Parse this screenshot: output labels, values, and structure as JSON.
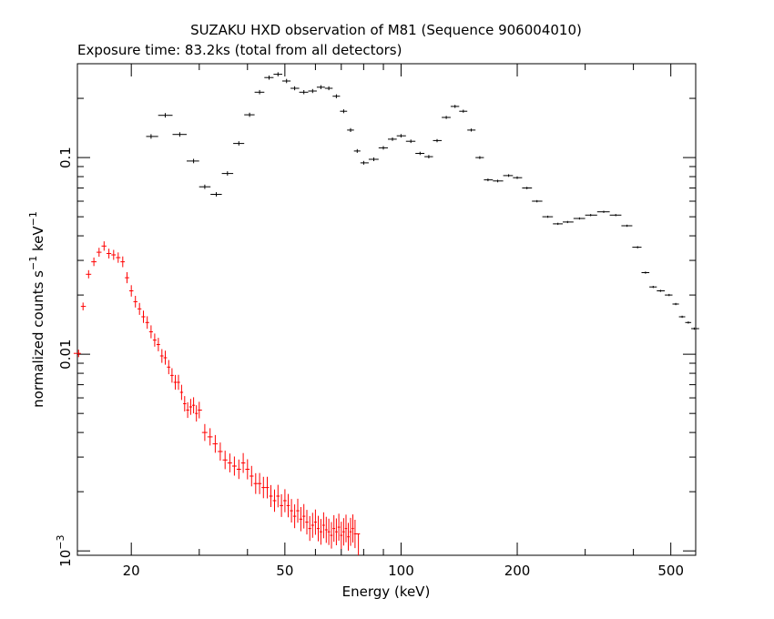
{
  "chart_data": {
    "type": "scatter",
    "title": "SUZAKU HXD observation of M81 (Sequence 906004010)",
    "subtitle": "Exposure time: 83.2ks (total from all detectors)",
    "xlabel": "Energy (keV)",
    "ylabel": "normalized counts s",
    "ylabel_exp1": "−1",
    "ylabel_mid": " keV",
    "ylabel_exp2": "−1",
    "x_scale": "log",
    "y_scale": "log",
    "xlim": [
      14.5,
      580
    ],
    "ylim": [
      0.00095,
      0.3
    ],
    "x_tick_labels": [
      {
        "value": 20,
        "label": "20"
      },
      {
        "value": 50,
        "label": "50"
      },
      {
        "value": 100,
        "label": "100"
      },
      {
        "value": 200,
        "label": "200"
      },
      {
        "value": 500,
        "label": "500"
      }
    ],
    "y_tick_labels": [
      {
        "value": 0.1,
        "label": "0.1"
      },
      {
        "value": 0.01,
        "label": "0.01"
      },
      {
        "value": 0.001,
        "label": "10",
        "exp": "−3"
      }
    ],
    "grid": false,
    "series": [
      {
        "color": "#000000",
        "points": [
          [
            22.5,
            0.128
          ],
          [
            24.5,
            0.164
          ],
          [
            26.7,
            0.131
          ],
          [
            29.0,
            0.096
          ],
          [
            31.0,
            0.071
          ],
          [
            33.2,
            0.065
          ],
          [
            35.5,
            0.083
          ],
          [
            38.0,
            0.118
          ],
          [
            40.5,
            0.165
          ],
          [
            43.0,
            0.215
          ],
          [
            45.5,
            0.255
          ],
          [
            48.0,
            0.265
          ],
          [
            50.5,
            0.245
          ],
          [
            53.0,
            0.225
          ],
          [
            56.0,
            0.215
          ],
          [
            59.0,
            0.218
          ],
          [
            62.0,
            0.228
          ],
          [
            65.0,
            0.225
          ],
          [
            68.0,
            0.205
          ],
          [
            71.0,
            0.172
          ],
          [
            74.0,
            0.138
          ],
          [
            77.0,
            0.108
          ],
          [
            80.0,
            0.094
          ],
          [
            85.0,
            0.098
          ],
          [
            90.0,
            0.112
          ],
          [
            95.0,
            0.124
          ],
          [
            100.0,
            0.129
          ],
          [
            106.0,
            0.121
          ],
          [
            112.0,
            0.105
          ],
          [
            118.0,
            0.101
          ],
          [
            124.0,
            0.122
          ],
          [
            131.0,
            0.16
          ],
          [
            138.0,
            0.182
          ],
          [
            145.0,
            0.172
          ],
          [
            152.0,
            0.138
          ],
          [
            160.0,
            0.1
          ],
          [
            168.0,
            0.077
          ],
          [
            178.0,
            0.076
          ],
          [
            190.0,
            0.081
          ],
          [
            200.0,
            0.079
          ],
          [
            212.0,
            0.07
          ],
          [
            225.0,
            0.06
          ],
          [
            240.0,
            0.05
          ],
          [
            255.0,
            0.046
          ],
          [
            270.0,
            0.047
          ],
          [
            290.0,
            0.049
          ],
          [
            310.0,
            0.051
          ],
          [
            335.0,
            0.053
          ],
          [
            360.0,
            0.051
          ],
          [
            385.0,
            0.045
          ],
          [
            410.0,
            0.035
          ],
          [
            430.0,
            0.026
          ],
          [
            450.0,
            0.022
          ],
          [
            470.0,
            0.021
          ],
          [
            495.0,
            0.02
          ],
          [
            515.0,
            0.018
          ],
          [
            535.0,
            0.0155
          ],
          [
            555.0,
            0.0145
          ],
          [
            575.0,
            0.0135
          ]
        ]
      },
      {
        "color": "#ff0000",
        "points": [
          [
            14.6,
            0.0101
          ],
          [
            15.0,
            0.0175
          ],
          [
            15.5,
            0.0255
          ],
          [
            16.0,
            0.0295
          ],
          [
            16.5,
            0.033
          ],
          [
            17.0,
            0.0355
          ],
          [
            17.5,
            0.0325
          ],
          [
            18.0,
            0.032
          ],
          [
            18.5,
            0.031
          ],
          [
            19.0,
            0.0295
          ],
          [
            19.5,
            0.0245
          ],
          [
            20.0,
            0.021
          ],
          [
            20.5,
            0.0185
          ],
          [
            21.0,
            0.017
          ],
          [
            21.5,
            0.0155
          ],
          [
            22.0,
            0.0145
          ],
          [
            22.5,
            0.013
          ],
          [
            23.0,
            0.0118
          ],
          [
            23.5,
            0.0112
          ],
          [
            24.0,
            0.0098
          ],
          [
            24.5,
            0.0096
          ],
          [
            25.0,
            0.0086
          ],
          [
            25.5,
            0.0078
          ],
          [
            26.0,
            0.0072
          ],
          [
            26.5,
            0.0072
          ],
          [
            27.0,
            0.0064
          ],
          [
            27.5,
            0.0056
          ],
          [
            28.0,
            0.0052
          ],
          [
            28.5,
            0.0054
          ],
          [
            29.0,
            0.0055
          ],
          [
            29.5,
            0.005
          ],
          [
            30.0,
            0.0052
          ],
          [
            31.0,
            0.004
          ],
          [
            32.0,
            0.0038
          ],
          [
            33.0,
            0.0035
          ],
          [
            34.0,
            0.0032
          ],
          [
            35.0,
            0.0029
          ],
          [
            36.0,
            0.0028
          ],
          [
            37.0,
            0.0027
          ],
          [
            38.0,
            0.0026
          ],
          [
            39.0,
            0.0028
          ],
          [
            40.0,
            0.0026
          ],
          [
            41.0,
            0.0024
          ],
          [
            42.0,
            0.0022
          ],
          [
            43.0,
            0.0022
          ],
          [
            44.0,
            0.0021
          ],
          [
            45.0,
            0.0021
          ],
          [
            46.0,
            0.0019
          ],
          [
            47.0,
            0.0018
          ],
          [
            48.0,
            0.0019
          ],
          [
            49.0,
            0.0017
          ],
          [
            50.0,
            0.0018
          ],
          [
            51.0,
            0.0017
          ],
          [
            52.0,
            0.0016
          ],
          [
            53.0,
            0.0015
          ],
          [
            54.0,
            0.0016
          ],
          [
            55.0,
            0.00145
          ],
          [
            56.0,
            0.0015
          ],
          [
            57.0,
            0.0014
          ],
          [
            58.0,
            0.0013
          ],
          [
            59.0,
            0.00135
          ],
          [
            60.0,
            0.0014
          ],
          [
            61.0,
            0.0013
          ],
          [
            62.0,
            0.00125
          ],
          [
            63.0,
            0.00135
          ],
          [
            64.0,
            0.00128
          ],
          [
            65.0,
            0.00125
          ],
          [
            66.0,
            0.0012
          ],
          [
            67.0,
            0.0013
          ],
          [
            68.0,
            0.00125
          ],
          [
            69.0,
            0.00132
          ],
          [
            70.0,
            0.0012
          ],
          [
            71.0,
            0.00125
          ],
          [
            72.0,
            0.0013
          ],
          [
            73.0,
            0.00118
          ],
          [
            74.0,
            0.00125
          ],
          [
            75.0,
            0.0013
          ],
          [
            76.0,
            0.00122
          ]
        ]
      }
    ]
  }
}
